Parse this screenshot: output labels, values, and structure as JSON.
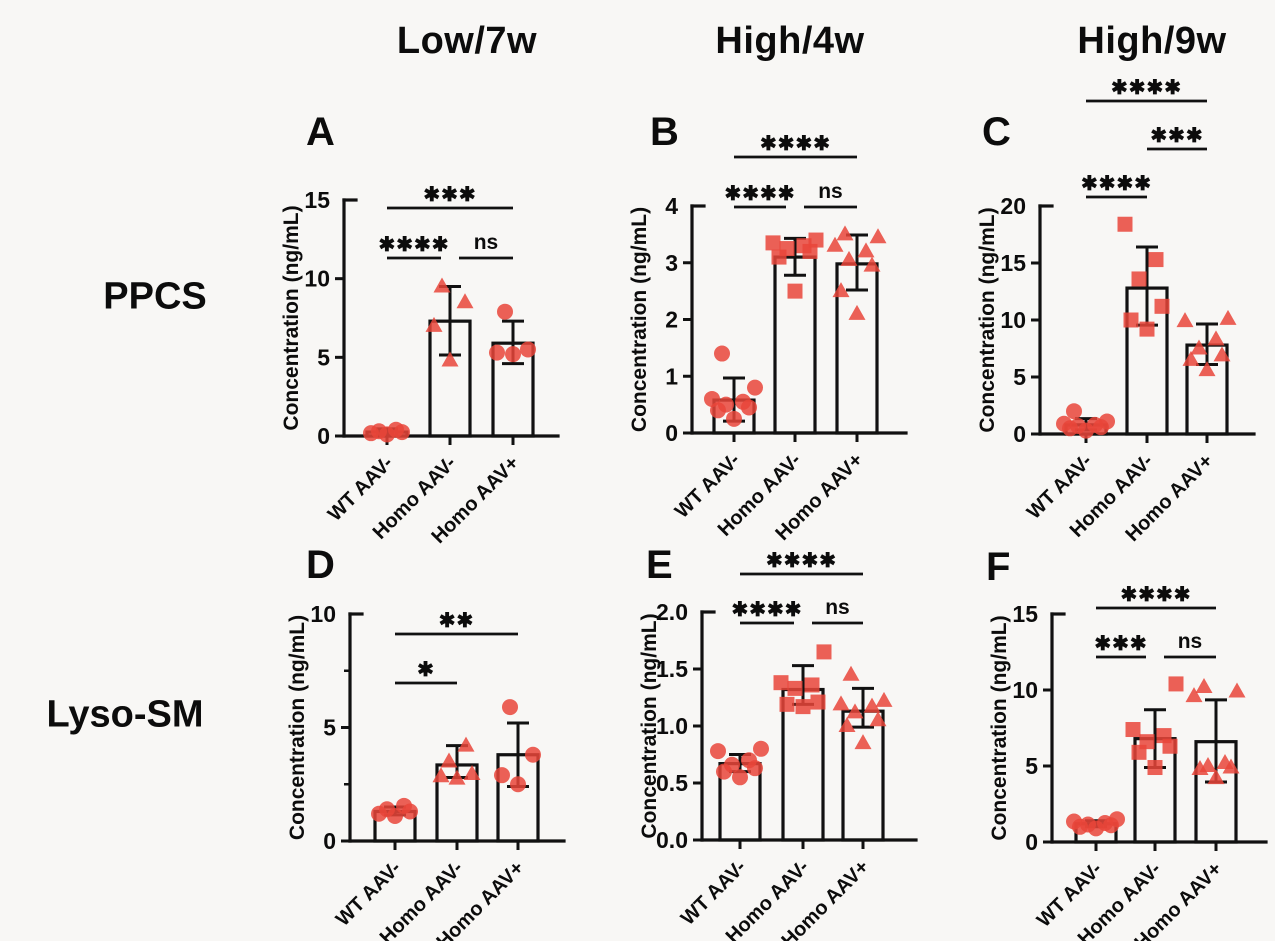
{
  "figure": {
    "col_headers": [
      {
        "label": "Low/7w"
      },
      {
        "label": "High/4w"
      },
      {
        "label": "High/9w"
      }
    ],
    "row_headers": [
      {
        "label": "PPCS"
      },
      {
        "label": "Lyso-SM"
      }
    ],
    "colors": {
      "marker": "#e9453a",
      "axis": "#111111",
      "text": "#0c0c0c",
      "background": "#f8f7f5"
    }
  },
  "chart_data": [
    {
      "id": "A",
      "type": "bar",
      "panel_letter": "A",
      "row": "PPCS",
      "col": "Low/7w",
      "ylabel": "Concentration (ng/mL)",
      "ylim": [
        0,
        15
      ],
      "yticks": [
        0,
        5,
        10,
        15
      ],
      "ytick_labels": [
        "0",
        "5",
        "10",
        "15"
      ],
      "yticks_minor": [],
      "categories": [
        "WT AAV-",
        "Homo AAV-",
        "Homo AAV+"
      ],
      "groups": [
        {
          "name": "WT AAV-",
          "marker": "circle",
          "mean": 0.25,
          "err_lo": 0.1,
          "err_hi": 0.45,
          "points": [
            0.1,
            0.18,
            0.25,
            0.3,
            0.4
          ]
        },
        {
          "name": "Homo AAV-",
          "marker": "triangle",
          "mean": 7.3,
          "err_lo": 5.15,
          "err_hi": 9.5,
          "points": [
            4.8,
            7.0,
            8.5,
            9.5
          ]
        },
        {
          "name": "Homo AAV+",
          "marker": "circle",
          "mean": 5.9,
          "err_lo": 4.6,
          "err_hi": 7.3,
          "points": [
            5.2,
            5.3,
            5.5,
            7.9
          ]
        }
      ],
      "significance": [
        {
          "from": 0,
          "to": 1,
          "label": "****",
          "tier": 0
        },
        {
          "from": 1,
          "to": 2,
          "label": "ns",
          "tier": 0
        },
        {
          "from": 0,
          "to": 2,
          "label": "***",
          "tier": 1
        }
      ]
    },
    {
      "id": "B",
      "type": "bar",
      "panel_letter": "B",
      "row": "PPCS",
      "col": "High/4w",
      "ylabel": "Concentration (ng/mL)",
      "ylim": [
        0,
        4
      ],
      "yticks": [
        0,
        1,
        2,
        3,
        4
      ],
      "ytick_labels": [
        "0",
        "1",
        "2",
        "3",
        "4"
      ],
      "yticks_minor": [],
      "categories": [
        "WT AAV-",
        "Homo AAV-",
        "Homo AAV+"
      ],
      "groups": [
        {
          "name": "WT AAV-",
          "marker": "circle",
          "mean": 0.58,
          "err_lo": 0.21,
          "err_hi": 0.97,
          "points": [
            0.25,
            0.4,
            0.45,
            0.5,
            0.55,
            0.6,
            0.8,
            1.4
          ]
        },
        {
          "name": "Homo AAV-",
          "marker": "square",
          "mean": 3.1,
          "err_lo": 2.78,
          "err_hi": 3.43,
          "points": [
            2.5,
            3.1,
            3.2,
            3.25,
            3.3,
            3.35,
            3.4
          ]
        },
        {
          "name": "Homo AAV+",
          "marker": "triangle",
          "mean": 2.98,
          "err_lo": 2.52,
          "err_hi": 3.49,
          "points": [
            2.1,
            2.5,
            2.95,
            3.05,
            3.2,
            3.3,
            3.45,
            3.5
          ]
        }
      ],
      "significance": [
        {
          "from": 0,
          "to": 1,
          "label": "****",
          "tier": 0
        },
        {
          "from": 1,
          "to": 2,
          "label": "ns",
          "tier": 0
        },
        {
          "from": 0,
          "to": 2,
          "label": "****",
          "tier": 1
        }
      ]
    },
    {
      "id": "C",
      "type": "bar",
      "panel_letter": "C",
      "row": "PPCS",
      "col": "High/9w",
      "ylabel": "Concentration (ng/mL)",
      "ylim": [
        0,
        20
      ],
      "yticks": [
        0,
        5,
        10,
        15,
        20
      ],
      "ytick_labels": [
        "0",
        "5",
        "10",
        "15",
        "20"
      ],
      "yticks_minor": [],
      "categories": [
        "WT AAV-",
        "Homo AAV-",
        "Homo AAV+"
      ],
      "groups": [
        {
          "name": "WT AAV-",
          "marker": "circle",
          "mean": 0.8,
          "err_lo": 0.35,
          "err_hi": 1.35,
          "points": [
            0.3,
            0.5,
            0.6,
            0.7,
            0.8,
            0.9,
            1.1,
            2.0
          ]
        },
        {
          "name": "Homo AAV-",
          "marker": "square",
          "mean": 12.8,
          "err_lo": 9.55,
          "err_hi": 16.4,
          "points": [
            9.2,
            10.0,
            11.2,
            13.6,
            15.3,
            18.4
          ]
        },
        {
          "name": "Homo AAV+",
          "marker": "triangle",
          "mean": 7.8,
          "err_lo": 6.1,
          "err_hi": 9.65,
          "points": [
            5.6,
            6.5,
            6.9,
            7.5,
            8.3,
            9.9,
            10.1
          ]
        }
      ],
      "significance": [
        {
          "from": 0,
          "to": 1,
          "label": "****",
          "tier": 0
        },
        {
          "from": 1,
          "to": 2,
          "label": "***",
          "tier": 1
        },
        {
          "from": 0,
          "to": 2,
          "label": "****",
          "tier": 2
        }
      ]
    },
    {
      "id": "D",
      "type": "bar",
      "panel_letter": "D",
      "row": "Lyso-SM",
      "col": "Low/7w",
      "ylabel": "Concentration (ng/mL)",
      "ylim": [
        0,
        10
      ],
      "yticks": [
        0,
        5,
        10
      ],
      "ytick_labels": [
        "0",
        "5",
        "10"
      ],
      "yticks_minor": [
        2.5,
        7.5
      ],
      "categories": [
        "WT AAV-",
        "Homo AAV-",
        "Homo AAV+"
      ],
      "groups": [
        {
          "name": "WT AAV-",
          "marker": "circle",
          "mean": 1.3,
          "err_lo": 1.15,
          "err_hi": 1.5,
          "points": [
            1.1,
            1.2,
            1.3,
            1.4,
            1.55
          ]
        },
        {
          "name": "Homo AAV-",
          "marker": "triangle",
          "mean": 3.35,
          "err_lo": 2.8,
          "err_hi": 4.2,
          "points": [
            2.75,
            2.85,
            2.95,
            3.5,
            4.2
          ]
        },
        {
          "name": "Homo AAV+",
          "marker": "circle",
          "mean": 3.8,
          "err_lo": 2.4,
          "err_hi": 5.2,
          "points": [
            2.5,
            2.9,
            3.8,
            5.9
          ]
        }
      ],
      "significance": [
        {
          "from": 0,
          "to": 1,
          "label": "*",
          "tier": 0
        },
        {
          "from": 0,
          "to": 2,
          "label": "**",
          "tier": 1
        }
      ]
    },
    {
      "id": "E",
      "type": "bar",
      "panel_letter": "E",
      "row": "Lyso-SM",
      "col": "High/4w",
      "ylabel": "Concentration (ng/mL)",
      "ylim": [
        0,
        2.0
      ],
      "yticks": [
        0,
        0.5,
        1.0,
        1.5,
        2.0
      ],
      "ytick_labels": [
        "0.0",
        "0.5",
        "1.0",
        "1.5",
        "2.0"
      ],
      "yticks_minor": [],
      "categories": [
        "WT AAV-",
        "Homo AAV-",
        "Homo AAV+"
      ],
      "groups": [
        {
          "name": "WT AAV-",
          "marker": "circle",
          "mean": 0.67,
          "err_lo": 0.6,
          "err_hi": 0.75,
          "points": [
            0.55,
            0.6,
            0.63,
            0.66,
            0.7,
            0.78,
            0.8
          ]
        },
        {
          "name": "Homo AAV-",
          "marker": "square",
          "mean": 1.32,
          "err_lo": 1.19,
          "err_hi": 1.53,
          "points": [
            1.17,
            1.19,
            1.21,
            1.33,
            1.36,
            1.38,
            1.65
          ]
        },
        {
          "name": "Homo AAV+",
          "marker": "triangle",
          "mean": 1.13,
          "err_lo": 0.99,
          "err_hi": 1.33,
          "points": [
            0.85,
            1.0,
            1.05,
            1.12,
            1.17,
            1.19,
            1.22,
            1.45
          ]
        }
      ],
      "significance": [
        {
          "from": 0,
          "to": 1,
          "label": "****",
          "tier": 0
        },
        {
          "from": 1,
          "to": 2,
          "label": "ns",
          "tier": 0
        },
        {
          "from": 0,
          "to": 2,
          "label": "****",
          "tier": 1
        }
      ]
    },
    {
      "id": "F",
      "type": "bar",
      "panel_letter": "F",
      "row": "Lyso-SM",
      "col": "High/9w",
      "ylabel": "Concentration (ng/mL)",
      "ylim": [
        0,
        15
      ],
      "yticks": [
        0,
        5,
        10,
        15
      ],
      "ytick_labels": [
        "0",
        "5",
        "10",
        "15"
      ],
      "yticks_minor": [],
      "categories": [
        "WT AAV-",
        "Homo AAV-",
        "Homo AAV+"
      ],
      "groups": [
        {
          "name": "WT AAV-",
          "marker": "circle",
          "mean": 1.2,
          "err_lo": 1.0,
          "err_hi": 1.4,
          "points": [
            0.9,
            1.0,
            1.1,
            1.15,
            1.25,
            1.35,
            1.5
          ]
        },
        {
          "name": "Homo AAV-",
          "marker": "square",
          "mean": 6.8,
          "err_lo": 4.9,
          "err_hi": 8.7,
          "points": [
            4.9,
            5.9,
            6.3,
            6.6,
            7.0,
            7.4,
            10.4
          ]
        },
        {
          "name": "Homo AAV+",
          "marker": "triangle",
          "mean": 6.6,
          "err_lo": 3.95,
          "err_hi": 9.35,
          "points": [
            4.2,
            4.8,
            4.9,
            5.0,
            5.2,
            9.6,
            9.9,
            10.2
          ]
        }
      ],
      "significance": [
        {
          "from": 0,
          "to": 1,
          "label": "***",
          "tier": 0
        },
        {
          "from": 1,
          "to": 2,
          "label": "ns",
          "tier": 0
        },
        {
          "from": 0,
          "to": 2,
          "label": "****",
          "tier": 1
        }
      ]
    }
  ]
}
